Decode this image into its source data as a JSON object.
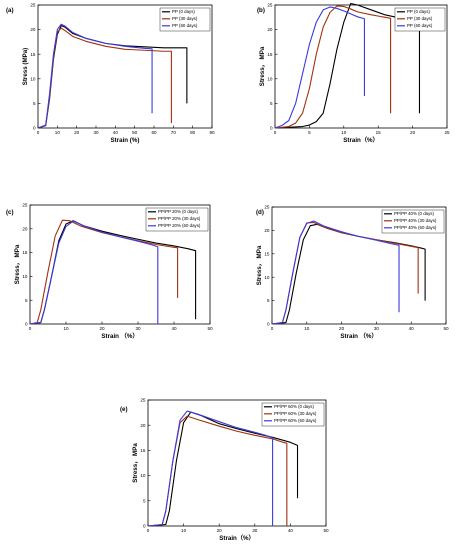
{
  "colors": {
    "d0": "#000000",
    "d30": "#a0320f",
    "d60": "#3a3ae0"
  },
  "chart_data": [
    {
      "id": "a",
      "type": "line",
      "panel_label": "(a)",
      "xlabel": "Strain (%)",
      "ylabel": "Stress (MPa)",
      "xlim": [
        0,
        90
      ],
      "ylim": [
        0,
        25
      ],
      "xticks": [
        "0",
        "10",
        "20",
        "30",
        "40",
        "50",
        "60",
        "70",
        "80",
        "90"
      ],
      "yticks": [
        "0",
        "5",
        "10",
        "15",
        "20",
        "25"
      ],
      "legend_position": "top-right",
      "series": [
        {
          "name": "PP (0 days)",
          "color_key": "d0",
          "x": [
            0,
            4,
            6,
            8,
            10,
            12,
            14,
            18,
            25,
            35,
            45,
            55,
            65,
            70,
            75,
            77,
            77
          ],
          "y": [
            0,
            0.5,
            6,
            14,
            19,
            20.8,
            20.5,
            19.2,
            18.2,
            17.2,
            16.7,
            16.5,
            16.3,
            16.3,
            16.3,
            16.3,
            5
          ]
        },
        {
          "name": "PP (30 days)",
          "color_key": "d30",
          "x": [
            0,
            4,
            6,
            8,
            10,
            12,
            14,
            18,
            25,
            35,
            45,
            55,
            60,
            65,
            68,
            69,
            69
          ],
          "y": [
            0,
            0.5,
            6.5,
            14.5,
            19.5,
            20.3,
            19.8,
            18.6,
            17.6,
            16.6,
            16,
            15.8,
            15.7,
            15.6,
            15.6,
            15.6,
            1
          ]
        },
        {
          "name": "PP (60 days)",
          "color_key": "d60",
          "x": [
            0,
            4,
            6,
            8,
            10,
            12,
            14,
            18,
            25,
            35,
            45,
            55,
            59,
            59
          ],
          "y": [
            0,
            0.6,
            7,
            15,
            20,
            21.1,
            20.7,
            19.4,
            18.2,
            17.2,
            16.6,
            16.2,
            16.1,
            3
          ]
        }
      ]
    },
    {
      "id": "b",
      "type": "line",
      "panel_label": "(b)",
      "xlabel": "Strain（%）",
      "ylabel": "Stress， MPa",
      "xlim": [
        0,
        25
      ],
      "ylim": [
        0,
        25
      ],
      "xticks": [
        "0",
        "5",
        "10",
        "15",
        "20",
        "25"
      ],
      "yticks": [
        "0",
        "5",
        "10",
        "15",
        "20",
        "25"
      ],
      "legend_position": "top-right",
      "series": [
        {
          "name": "PP (0 days)",
          "color_key": "d0",
          "x": [
            0,
            4,
            5,
            6,
            7,
            8,
            9,
            10,
            11,
            12,
            14,
            16,
            18,
            20,
            21,
            21
          ],
          "y": [
            0,
            0.3,
            0.6,
            1.3,
            3,
            9,
            16,
            21.5,
            25.3,
            25,
            24,
            23,
            22.4,
            22,
            21.8,
            3
          ]
        },
        {
          "name": "PP (30 days)",
          "color_key": "d30",
          "x": [
            0,
            2,
            3,
            4,
            5,
            6,
            7,
            8,
            9,
            10,
            11,
            12,
            14,
            16,
            16.8,
            16.8
          ],
          "y": [
            0,
            0.3,
            1,
            3,
            8,
            15,
            20.5,
            23.5,
            24.8,
            24.7,
            24.2,
            23.6,
            23,
            22.5,
            22.3,
            3
          ]
        },
        {
          "name": "PP (60 days)",
          "color_key": "d60",
          "x": [
            0,
            1,
            2,
            3,
            4,
            5,
            6,
            7,
            8,
            9,
            10,
            11,
            12,
            13,
            13,
            13
          ],
          "y": [
            0,
            0.5,
            1.5,
            5,
            11,
            17,
            21.5,
            24,
            24.6,
            24.3,
            23.8,
            23.2,
            22.6,
            22.2,
            22.2,
            6.5
          ]
        }
      ]
    },
    {
      "id": "c",
      "type": "line",
      "panel_label": "(c)",
      "xlabel": "Strain （%）",
      "ylabel": "Stress， MPa",
      "xlim": [
        0,
        50
      ],
      "ylim": [
        0,
        25
      ],
      "xticks": [
        "0",
        "10",
        "20",
        "30",
        "40",
        "50"
      ],
      "yticks": [
        "0",
        "5",
        "10",
        "15",
        "20",
        "25"
      ],
      "legend_position": "top-right",
      "series": [
        {
          "name": "PP/PP 20% (0 days)",
          "color_key": "d0",
          "x": [
            0,
            3,
            4,
            6,
            8,
            10,
            12,
            15,
            20,
            25,
            30,
            35,
            40,
            44,
            46,
            46
          ],
          "y": [
            0,
            0.3,
            3,
            10,
            17.5,
            21,
            21.7,
            20.6,
            19.5,
            18.6,
            17.8,
            17,
            16.4,
            15.8,
            15.4,
            1
          ]
        },
        {
          "name": "PP/PP 20% (30 days)",
          "color_key": "d30",
          "x": [
            0,
            2,
            3,
            5,
            7,
            9,
            11,
            14,
            20,
            25,
            30,
            35,
            40,
            41,
            41
          ],
          "y": [
            0,
            0.3,
            3,
            11,
            18.5,
            21.8,
            21.7,
            20.6,
            19.2,
            18.3,
            17.5,
            16.7,
            16.1,
            16,
            5.5
          ]
        },
        {
          "name": "PP/PP 20% (60 days)",
          "color_key": "d60",
          "x": [
            0,
            3,
            4,
            6,
            8,
            10,
            12,
            15,
            20,
            25,
            30,
            34,
            35.5,
            35.5
          ],
          "y": [
            0,
            0.3,
            3,
            10,
            17,
            20.5,
            21.6,
            20.6,
            19.3,
            18.3,
            17.4,
            16.6,
            16.2,
            0
          ]
        }
      ]
    },
    {
      "id": "d",
      "type": "line",
      "panel_label": "(d)",
      "xlabel": "Strain （%）",
      "ylabel": "Stress， MPa",
      "xlim": [
        0,
        50
      ],
      "ylim": [
        0,
        25
      ],
      "xticks": [
        "0",
        "10",
        "20",
        "30",
        "40",
        "50"
      ],
      "yticks": [
        "0",
        "5",
        "10",
        "15",
        "20",
        "25"
      ],
      "legend_position": "top-right",
      "series": [
        {
          "name": "PP/PP 40% (0 days)",
          "color_key": "d0",
          "x": [
            0,
            4,
            5,
            7,
            9,
            11,
            13,
            16,
            20,
            25,
            30,
            35,
            40,
            43,
            44,
            44
          ],
          "y": [
            0,
            0.3,
            3,
            11,
            18,
            21,
            21.3,
            20.4,
            19.5,
            18.7,
            18,
            17.4,
            16.7,
            16.2,
            16,
            5
          ]
        },
        {
          "name": "PP/PP 40% (30 days)",
          "color_key": "d30",
          "x": [
            0,
            3,
            4,
            6,
            8,
            10,
            12,
            15,
            20,
            25,
            30,
            35,
            40,
            42,
            42
          ],
          "y": [
            0,
            0.3,
            3,
            11,
            18.5,
            21.6,
            21.7,
            20.7,
            19.5,
            18.7,
            18,
            17.3,
            16.6,
            16.3,
            6.5
          ]
        },
        {
          "name": "PP/PP 40% (60 days)",
          "color_key": "d60",
          "x": [
            0,
            3,
            4,
            6,
            8,
            10,
            12,
            15,
            20,
            25,
            30,
            34,
            36.5,
            36.5
          ],
          "y": [
            0,
            0.3,
            3,
            11,
            18.5,
            21.5,
            22,
            20.9,
            19.7,
            18.7,
            17.9,
            17.2,
            16.8,
            2.5
          ]
        }
      ]
    },
    {
      "id": "e",
      "type": "line",
      "panel_label": "(e)",
      "xlabel": "Strain（%）",
      "ylabel": "Stress， MPa",
      "xlim": [
        0,
        50
      ],
      "ylim": [
        0,
        25
      ],
      "xticks": [
        "0",
        "10",
        "20",
        "30",
        "40",
        "50"
      ],
      "yticks": [
        "0",
        "5",
        "10",
        "15",
        "20",
        "25"
      ],
      "legend_position": "top-right",
      "series": [
        {
          "name": "PP/PP 60% (0 days)",
          "color_key": "d0",
          "x": [
            0,
            5,
            6,
            8,
            10,
            12,
            15,
            20,
            25,
            30,
            35,
            40,
            42,
            42
          ],
          "y": [
            0,
            0.3,
            3,
            13,
            20.5,
            22.6,
            21.9,
            20.3,
            19.3,
            18.4,
            17.6,
            16.6,
            16,
            5.5
          ]
        },
        {
          "name": "PP/PP 60% (30 days)",
          "color_key": "d30",
          "x": [
            0,
            4,
            5,
            7,
            9,
            11,
            14,
            20,
            25,
            30,
            35,
            38,
            39,
            39
          ],
          "y": [
            0,
            0.3,
            3,
            13,
            20.5,
            21.8,
            21.1,
            19.8,
            18.8,
            18,
            17.3,
            16.6,
            16.4,
            0
          ]
        },
        {
          "name": "PP/PP 60% (60 days)",
          "color_key": "d60",
          "x": [
            0,
            4,
            5,
            7,
            9,
            11,
            14,
            20,
            25,
            30,
            33,
            35,
            35
          ],
          "y": [
            0,
            0.3,
            3,
            13,
            21,
            22.8,
            22.2,
            20.7,
            19.5,
            18.6,
            18,
            17.5,
            0
          ]
        }
      ]
    }
  ]
}
